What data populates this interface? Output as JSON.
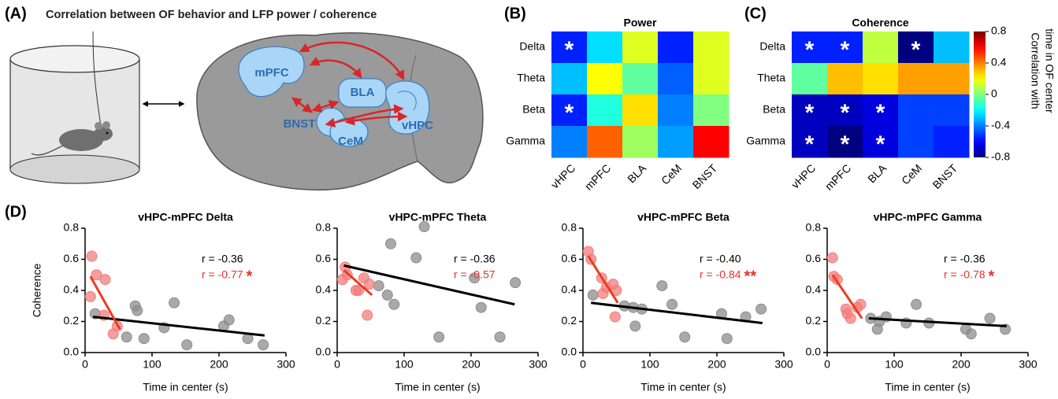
{
  "diagram": {
    "panel_label": "(A)",
    "title": "Correlation between OF behavior and LFP power / coherence",
    "regions": [
      "mPFC",
      "BLA",
      "BNST",
      "CeM",
      "vHPC"
    ]
  },
  "chart_data": [
    {
      "type": "heatmap",
      "panel_label": "(B)",
      "title": "Power",
      "rows": [
        "Delta",
        "Theta",
        "Beta",
        "Gamma"
      ],
      "columns": [
        "vHPC",
        "mPFC",
        "BLA",
        "CeM",
        "BNST"
      ],
      "values": [
        [
          -0.55,
          -0.25,
          0.15,
          -0.55,
          0.15
        ],
        [
          -0.3,
          0.2,
          -0.05,
          -0.45,
          0.15
        ],
        [
          -0.55,
          -0.15,
          0.25,
          -0.4,
          0.0
        ],
        [
          -0.4,
          0.45,
          0.05,
          -0.35,
          0.6
        ]
      ],
      "stars": [
        [
          "*",
          null,
          null,
          null,
          null
        ],
        [
          null,
          null,
          null,
          null,
          null
        ],
        [
          "*",
          null,
          null,
          null,
          null
        ],
        [
          null,
          null,
          null,
          null,
          null
        ]
      ],
      "zlim": [
        -0.8,
        0.8
      ],
      "colormap": "jet"
    },
    {
      "type": "heatmap",
      "panel_label": "(C)",
      "title": "Coherence",
      "rows": [
        "Delta",
        "Theta",
        "Beta",
        "Gamma"
      ],
      "columns": [
        "vHPC",
        "mPFC",
        "BLA",
        "CeM",
        "BNST"
      ],
      "values": [
        [
          -0.55,
          -0.55,
          0.1,
          -0.8,
          -0.3
        ],
        [
          -0.05,
          0.3,
          0.25,
          0.35,
          0.35
        ],
        [
          -0.7,
          -0.7,
          -0.65,
          -0.5,
          -0.5
        ],
        [
          -0.7,
          -0.8,
          -0.65,
          -0.5,
          -0.55
        ]
      ],
      "stars": [
        [
          "*",
          "*",
          null,
          "*",
          null
        ],
        [
          null,
          null,
          null,
          null,
          null
        ],
        [
          "*",
          "*",
          "*",
          null,
          null
        ],
        [
          "*",
          "*",
          "*",
          null,
          null
        ]
      ],
      "zlim": [
        -0.8,
        0.8
      ],
      "colormap": "jet",
      "zticks": [
        0.8,
        0.4,
        0,
        -0.4,
        -0.8
      ],
      "colorbar_label": [
        "Correlation with",
        "time in OF center"
      ]
    },
    {
      "type": "scatter",
      "panel_label": "(D)",
      "title": "vHPC-mPFC Delta",
      "xlabel": "Time in center (s)",
      "ylabel": "Coherence",
      "xlim": [
        0,
        300
      ],
      "ylim": [
        0,
        0.8
      ],
      "xticks": [
        0,
        100,
        200,
        300
      ],
      "yticks": [
        {
          "value": 0,
          "label": "0.0"
        },
        0.2,
        0.4,
        0.6,
        0.8
      ],
      "series": [
        {
          "color": "#8c8c8c",
          "fit_color": "#000000",
          "x": [
            15,
            62,
            75,
            78,
            88,
            118,
            133,
            152,
            207,
            215,
            243,
            266
          ],
          "values": [
            0.25,
            0.1,
            0.3,
            0.27,
            0.09,
            0.16,
            0.32,
            0.05,
            0.17,
            0.21,
            0.09,
            0.05
          ],
          "fit": {
            "x": [
              12,
              268
            ],
            "values": [
              0.23,
              0.11
            ]
          }
        },
        {
          "color": "#f47c7c",
          "fit_color": "#ec3b1f",
          "x": [
            8,
            10,
            17,
            28,
            30,
            42,
            48
          ],
          "values": [
            0.36,
            0.62,
            0.5,
            0.24,
            0.47,
            0.12,
            0.17
          ],
          "fit": {
            "x": [
              8,
              52
            ],
            "values": [
              0.49,
              0.15
            ]
          }
        }
      ],
      "annotations": [
        {
          "text": "r = -0.36",
          "color": "#000000"
        },
        {
          "text": "r = -0.77",
          "color": "#e8312a"
        }
      ],
      "significance": {
        "text": "*",
        "color": "#e8312a"
      }
    },
    {
      "type": "scatter",
      "title": "vHPC-mPFC Theta",
      "xlabel": "Time in center (s)",
      "xlim": [
        0,
        300
      ],
      "ylim": [
        0,
        0.8
      ],
      "xticks": [
        0,
        100,
        200,
        300
      ],
      "yticks": [
        {
          "value": 0,
          "label": "0.0"
        },
        0.2,
        0.4,
        0.6,
        0.8
      ],
      "series": [
        {
          "color": "#8c8c8c",
          "fit_color": "#000000",
          "x": [
            62,
            75,
            80,
            85,
            118,
            130,
            152,
            205,
            215,
            243,
            266
          ],
          "values": [
            0.43,
            0.37,
            0.7,
            0.31,
            0.61,
            0.81,
            0.1,
            0.48,
            0.29,
            0.1,
            0.45
          ],
          "fit": {
            "x": [
              10,
              265
            ],
            "values": [
              0.56,
              0.31
            ]
          }
        },
        {
          "color": "#f47c7c",
          "fit_color": "#ec3b1f",
          "x": [
            8,
            12,
            15,
            28,
            32,
            40,
            45,
            48
          ],
          "values": [
            0.47,
            0.55,
            0.5,
            0.4,
            0.4,
            0.48,
            0.24,
            0.44
          ],
          "fit": {
            "x": [
              10,
              52
            ],
            "values": [
              0.53,
              0.37
            ]
          }
        }
      ],
      "annotations": [
        {
          "text": "r = -0.36",
          "color": "#000000"
        },
        {
          "text": "r = -0.57",
          "color": "#e8312a"
        }
      ]
    },
    {
      "type": "scatter",
      "title": "vHPC-mPFC Beta",
      "xlabel": "Time in center (s)",
      "xlim": [
        0,
        300
      ],
      "ylim": [
        0,
        0.8
      ],
      "xticks": [
        0,
        100,
        200,
        300
      ],
      "yticks": [
        {
          "value": 0,
          "label": "0.0"
        },
        0.2,
        0.4,
        0.6,
        0.8
      ],
      "series": [
        {
          "color": "#8c8c8c",
          "fit_color": "#000000",
          "x": [
            15,
            62,
            75,
            78,
            88,
            118,
            133,
            152,
            207,
            215,
            243,
            266
          ],
          "values": [
            0.37,
            0.3,
            0.29,
            0.17,
            0.28,
            0.43,
            0.31,
            0.1,
            0.25,
            0.09,
            0.23,
            0.28
          ],
          "fit": {
            "x": [
              12,
              268
            ],
            "values": [
              0.32,
              0.19
            ]
          }
        },
        {
          "color": "#f47c7c",
          "fit_color": "#ec3b1f",
          "x": [
            8,
            12,
            28,
            30,
            35,
            45,
            48,
            50
          ],
          "values": [
            0.65,
            0.6,
            0.48,
            0.38,
            0.42,
            0.44,
            0.23,
            0.4
          ],
          "fit": {
            "x": [
              8,
              52
            ],
            "values": [
              0.62,
              0.32
            ]
          }
        }
      ],
      "annotations": [
        {
          "text": "r = -0.40",
          "color": "#000000"
        },
        {
          "text": "r = -0.84",
          "color": "#e8312a"
        }
      ],
      "significance": {
        "text": "**",
        "color": "#e8312a"
      }
    },
    {
      "type": "scatter",
      "title": "vHPC-mPFC Gamma",
      "xlabel": "Time in center (s)",
      "xlim": [
        0,
        300
      ],
      "ylim": [
        0,
        0.8
      ],
      "xticks": [
        0,
        100,
        200,
        300
      ],
      "yticks": [
        {
          "value": 0,
          "label": "0.0"
        },
        0.2,
        0.4,
        0.6,
        0.8
      ],
      "series": [
        {
          "color": "#8c8c8c",
          "fit_color": "#000000",
          "x": [
            65,
            75,
            78,
            88,
            118,
            133,
            152,
            207,
            215,
            243,
            266
          ],
          "values": [
            0.22,
            0.15,
            0.2,
            0.23,
            0.19,
            0.31,
            0.19,
            0.15,
            0.12,
            0.22,
            0.15
          ],
          "fit": {
            "x": [
              62,
              268
            ],
            "values": [
              0.22,
              0.17
            ]
          }
        },
        {
          "color": "#f47c7c",
          "fit_color": "#ec3b1f",
          "x": [
            8,
            10,
            15,
            28,
            30,
            35,
            45,
            50
          ],
          "values": [
            0.61,
            0.49,
            0.47,
            0.28,
            0.25,
            0.22,
            0.29,
            0.31
          ],
          "fit": {
            "x": [
              8,
              52
            ],
            "values": [
              0.5,
              0.22
            ]
          }
        }
      ],
      "annotations": [
        {
          "text": "r = -0.36",
          "color": "#000000"
        },
        {
          "text": "r = -0.78",
          "color": "#e8312a"
        }
      ],
      "significance": {
        "text": "*",
        "color": "#e8312a"
      }
    }
  ]
}
